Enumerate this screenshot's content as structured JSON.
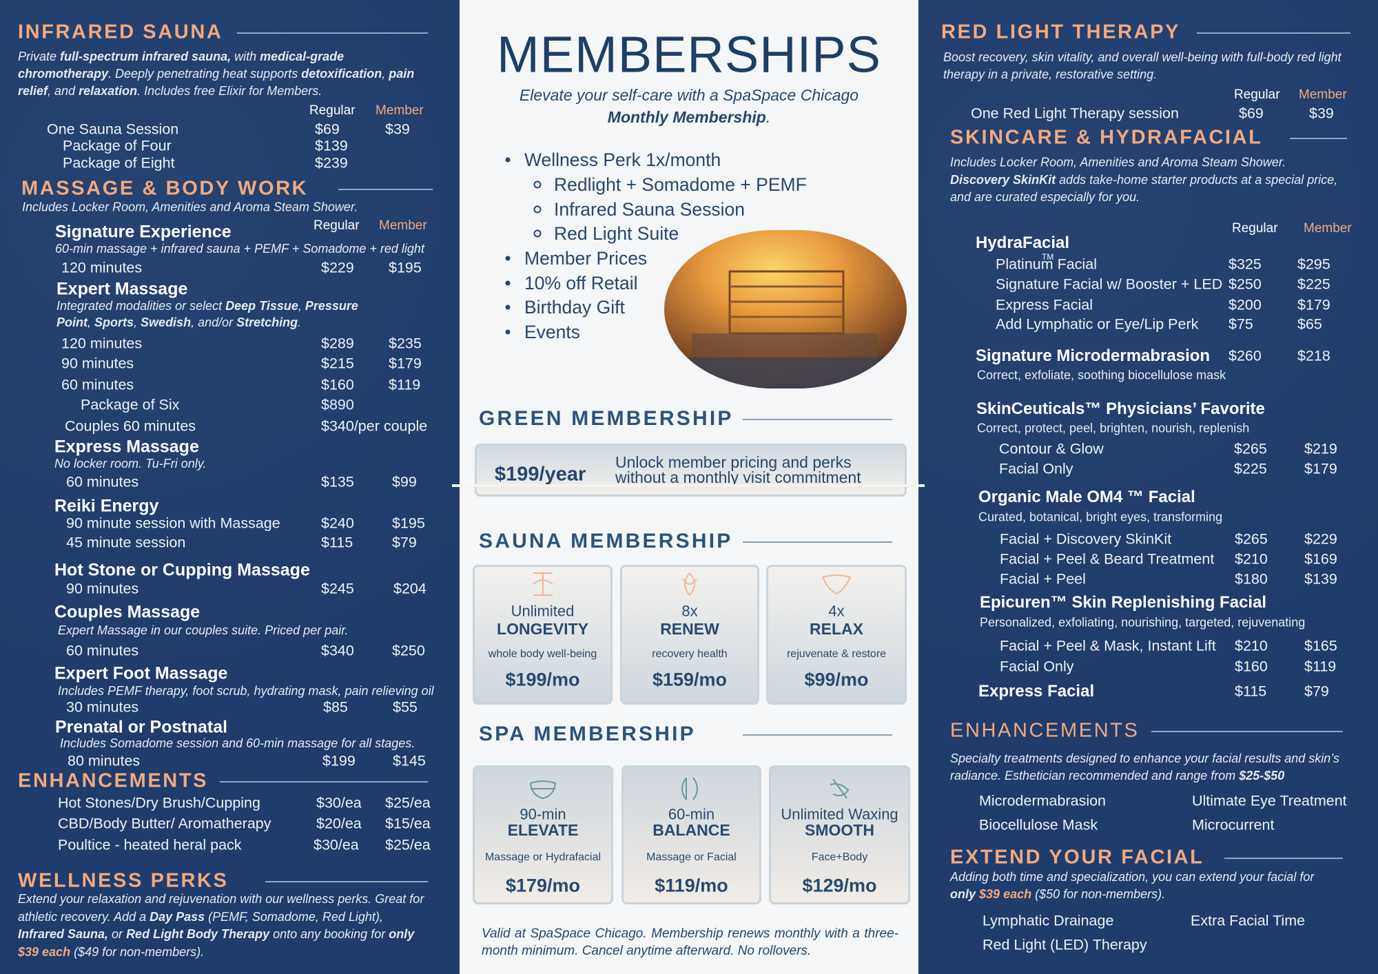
{
  "left": {
    "infrared_sauna": {
      "title": "INFRARED SAUNA",
      "description": [
        "Private ",
        {
          "text": "full-spectrum infrared sauna,",
          "style": "bold"
        },
        " with ",
        {
          "text": "medical-grade chromotherapy",
          "style": "bold"
        },
        ". Deeply penetrating heat supports ",
        {
          "text": "detoxification",
          "style": "bold"
        },
        ", ",
        {
          "text": "pain relief",
          "style": "bold"
        },
        ", and ",
        {
          "text": "relaxation",
          "style": "bold"
        },
        ". Includes free Elixir for Members."
      ],
      "headers": [
        "Regular",
        "Member"
      ],
      "rows": [
        [
          "One Sauna Session",
          "$69",
          "$39"
        ],
        [
          "Package of Four",
          "$139"
        ],
        [
          "Package of Eight",
          "$239"
        ]
      ]
    },
    "massage": {
      "title": "MASSAGE & BODY WORK",
      "note": "Includes Locker Room, Amenities and Aroma Steam Shower.",
      "headers": [
        "Regular",
        "Member"
      ],
      "items": [
        {
          "name": "Signature Experience",
          "note": [
            "60-min massage + infrared sauna + PEMF + Somadome + red light"
          ],
          "rows": [
            [
              "120 minutes",
              "$229",
              "$195"
            ]
          ]
        },
        {
          "name": "Expert Massage",
          "note": [
            "Integrated modalities or select ",
            {
              "text": "Deep Tissue",
              "style": "bold"
            },
            ", ",
            {
              "text": "Pressure Point",
              "style": "bold"
            },
            ", ",
            {
              "text": "Sports",
              "style": "bold"
            },
            ", ",
            {
              "text": "Swedish",
              "style": "bold"
            },
            ", and/or ",
            {
              "text": "Stretching",
              "style": "bold"
            },
            "."
          ],
          "rows": [
            [
              "120 minutes",
              "$289",
              "$235"
            ],
            [
              "90 minutes",
              "$215",
              "$179"
            ],
            [
              "60 minutes",
              "$160",
              "$119"
            ],
            [
              "Package of Six",
              "$890"
            ],
            [
              "Couples 60 minutes",
              "$340/per couple"
            ]
          ]
        },
        {
          "name": "Express Massage",
          "note": [
            "No locker room. Tu-Fri only."
          ],
          "rows": [
            [
              "60 minutes",
              "$135",
              "$99"
            ]
          ]
        },
        {
          "name": "Reiki Energy",
          "rows": [
            [
              "90 minute session with Massage",
              "$240",
              "$195"
            ],
            [
              "45 minute session",
              "$115",
              "$79"
            ]
          ]
        },
        {
          "name": "Hot Stone or Cupping Massage",
          "rows": [
            [
              "90 minutes",
              "$245",
              "$204"
            ]
          ]
        },
        {
          "name": "Couples Massage",
          "note": [
            "Expert Massage in our couples suite. Priced per pair."
          ],
          "rows": [
            [
              "60 minutes",
              "$340",
              "$250"
            ]
          ]
        },
        {
          "name": "Expert Foot Massage",
          "note": [
            "Includes PEMF therapy, foot scrub, hydrating mask, pain relieving oil"
          ],
          "rows": [
            [
              "30 minutes",
              "$85",
              "$55"
            ]
          ]
        },
        {
          "name": "Prenatal or Postnatal",
          "note": [
            "Includes Somadome session and  60-min massage for all stages."
          ],
          "rows": [
            [
              "80 minutes",
              "$199",
              "$145"
            ]
          ]
        }
      ]
    },
    "enhancements": {
      "title": "ENHANCEMENTS",
      "rows": [
        [
          "Hot Stones/Dry Brush/Cupping",
          "$30/ea",
          "$25/ea"
        ],
        [
          "CBD/Body Butter/ Aromatherapy",
          "$20/ea",
          "$15/ea"
        ],
        [
          "Poultice - heated heral pack",
          "$30/ea",
          "$25/ea"
        ]
      ]
    },
    "wellness_perks": {
      "title": "WELLNESS PERKS",
      "description": [
        "Extend your relaxation and rejuvenation with our wellness perks. Great for athletic recovery. Add a ",
        {
          "text": "Day Pass",
          "style": "bold"
        },
        " (PEMF, Somadome, Red Light), ",
        {
          "text": "Infrared Sauna,",
          "style": "bold"
        },
        " or ",
        {
          "text": "Red Light Body Therapy",
          "style": "bold"
        },
        " onto any booking for ",
        {
          "text": "only",
          "style": "bold"
        },
        " ",
        {
          "text": "$39 each",
          "style": "accent"
        },
        " ($49 for non-members)."
      ]
    }
  },
  "center": {
    "title": "MEMBERSHIPS",
    "subtitle": [
      "Elevate your self-care with a SpaSpace Chicago ",
      {
        "text": "Monthly Membership",
        "style": "bold"
      },
      "."
    ],
    "perks": [
      {
        "text": "Wellness Perk 1x/month",
        "sub": [
          "Redlight + Somadome + PEMF",
          "Infrared Sauna Session",
          "Red Light Suite"
        ]
      },
      {
        "text": "Member Prices"
      },
      {
        "text": "10% off Retail"
      },
      {
        "text": "Birthday Gift"
      },
      {
        "text": "Events"
      }
    ],
    "green": {
      "title": "GREEN MEMBERSHIP",
      "price": "$199/year",
      "text": "Unlock member pricing and perks without a monthly visit commitment"
    },
    "sauna": {
      "title": "SAUNA MEMBERSHIP",
      "plans": [
        {
          "count": "Unlimited",
          "name": "LONGEVITY",
          "desc": "whole body well-being",
          "price": "$199/mo"
        },
        {
          "count": "8x",
          "name": "RENEW",
          "desc": "recovery health",
          "price": "$159/mo"
        },
        {
          "count": "4x",
          "name": "RELAX",
          "desc": "rejuvenate & restore",
          "price": "$99/mo"
        }
      ]
    },
    "spa": {
      "title": "SPA MEMBERSHIP",
      "plans": [
        {
          "count": "90-min",
          "name": "ELEVATE",
          "desc": "Massage or Hydrafacial",
          "price": "$179/mo"
        },
        {
          "count": "60-min",
          "name": "BALANCE",
          "desc": "Massage or Facial",
          "price": "$119/mo"
        },
        {
          "count": "Unlimited Waxing",
          "name": "SMOOTH",
          "desc": "Face+Body",
          "price": "$129/mo"
        }
      ]
    },
    "footnote": "Valid at SpaSpace Chicago. Membership renews monthly with a three-month minimum. Cancel anytime afterward. No rollovers."
  },
  "right": {
    "red_light": {
      "title": "RED LIGHT THERAPY",
      "description": "Boost recovery, skin vitality, and overall well-being with full-body red light therapy in a private, restorative setting.",
      "headers": [
        "Regular",
        "Member"
      ],
      "rows": [
        [
          "One Red Light Therapy session",
          "$69",
          "$39"
        ]
      ]
    },
    "skincare": {
      "title": "SKINCARE & HYDRAFACIAL",
      "note": "Includes  Locker Room, Amenities and Aroma Steam Shower.",
      "description": [
        {
          "text": "Discovery SkinKit",
          "style": "bold"
        },
        " adds take-home starter products at a special price, and are curated especially for you."
      ],
      "headers": [
        "Regular",
        "Member"
      ],
      "items": [
        {
          "name": "HydraFacial",
          "mark": "TM",
          "rows": [
            [
              "Platinum Facial",
              "$325",
              "$295"
            ],
            [
              "Signature Facial w/ Booster + LED",
              "$250",
              "$225"
            ],
            [
              "Express Facial",
              "$200",
              "$179"
            ],
            [
              "Add Lymphatic or Eye/Lip Perk",
              "$75",
              "$65"
            ]
          ]
        },
        {
          "name": "Signature Microdermabrasion",
          "prices": [
            "$260",
            "$218"
          ],
          "note": "Correct, exfoliate, soothing biocellulose mask"
        },
        {
          "name": "SkinCeuticals™ Physicians’ Favorite",
          "note": "Correct, protect, peel, brighten, nourish, replenish",
          "rows": [
            [
              "Contour & Glow",
              "$265",
              "$219"
            ],
            [
              "Facial Only",
              "$225",
              "$179"
            ]
          ]
        },
        {
          "name": "Organic Male OM4 ™  Facial",
          "note": "Curated, botanical, bright eyes, transforming",
          "rows": [
            [
              "Facial + Discovery SkinKit",
              "$265",
              "$229"
            ],
            [
              "Facial + Peel & Beard Treatment",
              "$210",
              "$169"
            ],
            [
              "Facial + Peel",
              "$180",
              "$139"
            ]
          ]
        },
        {
          "name": "Epicuren™ Skin Replenishing Facial",
          "note": "Personalized, exfoliating, nourishing, targeted, rejuvenating",
          "rows": [
            [
              "Facial + Peel & Mask, Instant Lift",
              "$210",
              "$165"
            ],
            [
              "Facial Only",
              "$160",
              "$119"
            ]
          ]
        },
        {
          "name": "Express Facial",
          "prices": [
            "$115",
            "$79"
          ]
        }
      ]
    },
    "enhancements": {
      "title": "ENHANCEMENTS",
      "description": [
        "Specialty treatments designed to enhance your facial results and skin’s radiance. Esthetician recommended and range from ",
        {
          "text": "$25-$50",
          "style": "bold"
        }
      ],
      "list": [
        "Microdermabrasion",
        "Ultimate Eye Treatment",
        "Biocellulose Mask",
        "Microcurrent"
      ]
    },
    "extend": {
      "title": "EXTEND YOUR FACIAL",
      "description": [
        "Adding both time and specialization, you can extend your facial for ",
        {
          "text": "only",
          "style": "bold"
        },
        " ",
        {
          "text": "$39 each",
          "style": "accent"
        },
        " ($50 for non-members)."
      ],
      "list": [
        "Lymphatic Drainage",
        "Extra Facial Time",
        "Red Light (LED) Therapy"
      ]
    }
  }
}
